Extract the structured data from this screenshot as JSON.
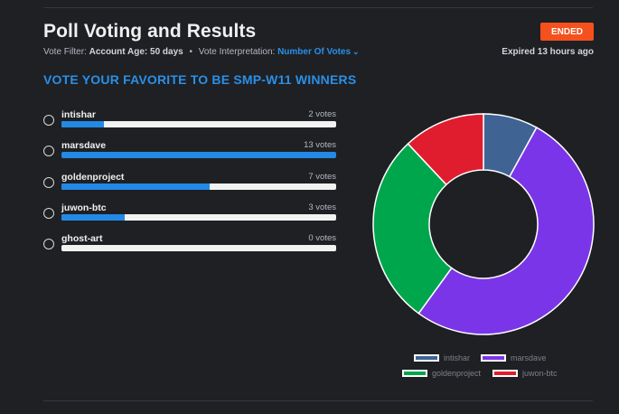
{
  "poll": {
    "title": "Poll Voting and Results",
    "status": "ENDED",
    "filter_label": "Vote Filter:",
    "filter_value": "Account Age: 50 days",
    "interp_label": "Vote Interpretation:",
    "interp_value": "Number Of Votes",
    "expired": "Expired 13 hours ago",
    "question": "VOTE YOUR FAVORITE TO BE SMP-W11 WINNERS"
  },
  "options": [
    {
      "name": "intishar",
      "votes_label": "2 votes",
      "votes": 2
    },
    {
      "name": "marsdave",
      "votes_label": "13 votes",
      "votes": 13
    },
    {
      "name": "goldenproject",
      "votes_label": "7 votes",
      "votes": 7
    },
    {
      "name": "juwon-btc",
      "votes_label": "3 votes",
      "votes": 3
    },
    {
      "name": "ghost-art",
      "votes_label": "0 votes",
      "votes": 0
    }
  ],
  "chart_data": {
    "type": "pie",
    "categories": [
      "intishar",
      "marsdave",
      "goldenproject",
      "juwon-btc"
    ],
    "values": [
      2,
      13,
      7,
      3
    ],
    "colors": [
      "#3f6494",
      "#7b35e8",
      "#00a64c",
      "#df1d2f"
    ],
    "legend": "bottom"
  }
}
